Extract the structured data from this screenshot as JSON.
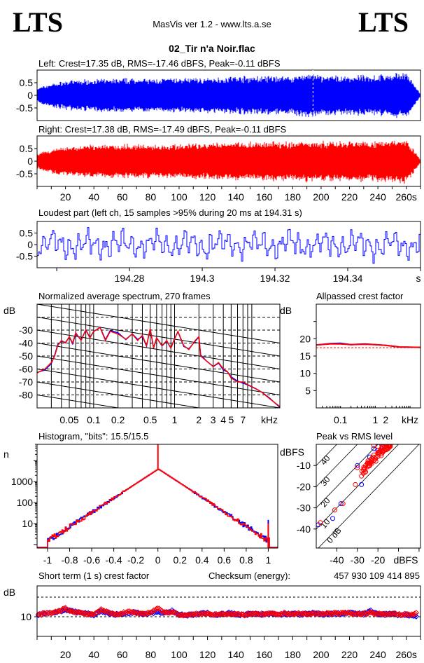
{
  "header": {
    "logo_left": "LTS",
    "logo_right": "LTS",
    "app": "MasVis ver 1.2 - www.lts.a.se",
    "file": "02_Tir n'a Noir.flac"
  },
  "colors": {
    "left": "#0000ff",
    "right": "#ff0000"
  },
  "chart_data": [
    {
      "id": "left",
      "type": "line",
      "title": "Left: Crest=17.35 dB, RMS=-17.46 dBFS, Peak=-0.11 dBFS",
      "ylim": [
        -1,
        1
      ],
      "yticks": [
        "0.5",
        "0",
        "-0.5"
      ],
      "xlim": [
        0,
        270
      ],
      "envelope_step_s": 10,
      "envelope": [
        0.3,
        0.5,
        0.6,
        0.65,
        0.68,
        0.7,
        0.7,
        0.72,
        0.68,
        0.72,
        0.72,
        0.75,
        0.72,
        0.78,
        0.8,
        0.8,
        0.8,
        0.82,
        0.8,
        0.95,
        0.82,
        0.82,
        0.82,
        0.85,
        0.85,
        0.9,
        0.97,
        0.05
      ]
    },
    {
      "id": "right",
      "type": "line",
      "title": "Right: Crest=17.38 dB, RMS=-17.49 dBFS, Peak=-0.11 dBFS",
      "ylim": [
        -1,
        1
      ],
      "yticks": [
        "0.5",
        "0",
        "-0.5"
      ],
      "xlim": [
        0,
        270
      ],
      "xticks": [
        "20",
        "40",
        "60",
        "80",
        "100",
        "120",
        "140",
        "160",
        "180",
        "200",
        "220",
        "240",
        "260s"
      ],
      "envelope_step_s": 10,
      "envelope": [
        0.3,
        0.5,
        0.6,
        0.65,
        0.68,
        0.7,
        0.7,
        0.72,
        0.68,
        0.72,
        0.72,
        0.75,
        0.72,
        0.78,
        0.85,
        0.8,
        0.8,
        0.82,
        0.8,
        0.88,
        0.82,
        0.85,
        0.85,
        0.85,
        0.85,
        0.9,
        0.97,
        0.05
      ]
    },
    {
      "id": "loudest",
      "type": "line",
      "title": "Loudest part (left  ch, 15 samples >95% during 20 ms at 194.31 s)",
      "xlim": [
        194.2546,
        194.36
      ],
      "ylim": [
        -1,
        1
      ],
      "yticks": [
        "0.5",
        "0",
        "-0.5"
      ],
      "xticks": [
        "194.28",
        "194.3",
        "194.32",
        "194.34"
      ],
      "xunit": "s"
    },
    {
      "id": "spectrum",
      "type": "line",
      "title": "Normalized average spectrum, 270 frames",
      "ylabel": "dB",
      "xlim_khz": [
        0.02,
        20
      ],
      "ylim": [
        -90,
        -10
      ],
      "yticks": [
        "-30",
        "-40",
        "-50",
        "-60",
        "-70",
        "-80"
      ],
      "xticks": [
        "0.05",
        "0.1",
        "0.2",
        "0.5",
        "1",
        "2",
        "3",
        "4",
        "5",
        "7"
      ],
      "xunit": "kHz",
      "points": [
        [
          0.02,
          -63
        ],
        [
          0.025,
          -60
        ],
        [
          0.03,
          -55
        ],
        [
          0.033,
          -50
        ],
        [
          0.036,
          -42
        ],
        [
          0.04,
          -38
        ],
        [
          0.045,
          -40
        ],
        [
          0.05,
          -35
        ],
        [
          0.055,
          -40
        ],
        [
          0.06,
          -32
        ],
        [
          0.07,
          -38
        ],
        [
          0.08,
          -30
        ],
        [
          0.09,
          -36
        ],
        [
          0.1,
          -31
        ],
        [
          0.12,
          -28
        ],
        [
          0.14,
          -38
        ],
        [
          0.16,
          -31
        ],
        [
          0.2,
          -33
        ],
        [
          0.25,
          -37
        ],
        [
          0.3,
          -33
        ],
        [
          0.35,
          -38
        ],
        [
          0.4,
          -34
        ],
        [
          0.45,
          -42
        ],
        [
          0.5,
          -29
        ],
        [
          0.55,
          -44
        ],
        [
          0.6,
          -36
        ],
        [
          0.7,
          -42
        ],
        [
          0.8,
          -38
        ],
        [
          0.9,
          -44
        ],
        [
          1.0,
          -37
        ],
        [
          1.1,
          -31
        ],
        [
          1.3,
          -42
        ],
        [
          1.5,
          -45
        ],
        [
          1.8,
          -38
        ],
        [
          2.0,
          -35
        ],
        [
          2.1,
          -50
        ],
        [
          2.5,
          -54
        ],
        [
          3.0,
          -58
        ],
        [
          3.5,
          -55
        ],
        [
          4.0,
          -60
        ],
        [
          4.5,
          -62
        ],
        [
          5.0,
          -67
        ],
        [
          6.0,
          -70
        ],
        [
          7.0,
          -70
        ],
        [
          8.0,
          -72
        ],
        [
          10,
          -75
        ],
        [
          12,
          -78
        ],
        [
          15,
          -83
        ],
        [
          20,
          -89
        ]
      ]
    },
    {
      "id": "allpass",
      "type": "line",
      "title": "Allpassed crest factor",
      "ylabel": "dB",
      "xlim_khz": [
        0.02,
        20
      ],
      "ylim": [
        0,
        30
      ],
      "yticks": [
        "20",
        "15",
        "10",
        "5"
      ],
      "xticks": [
        "0.1",
        "1",
        "2"
      ],
      "xunit": "kHz",
      "overall_crest_db": 17.4,
      "left": [
        [
          0.02,
          18.2
        ],
        [
          0.05,
          18.6
        ],
        [
          0.1,
          18.7
        ],
        [
          0.2,
          18.3
        ],
        [
          0.5,
          18.5
        ],
        [
          1,
          18.3
        ],
        [
          2,
          18.1
        ],
        [
          5,
          17.6
        ],
        [
          20,
          17.5
        ]
      ],
      "right": [
        [
          0.02,
          18.2
        ],
        [
          0.05,
          18.5
        ],
        [
          0.1,
          18.5
        ],
        [
          0.2,
          18.3
        ],
        [
          0.5,
          18.4
        ],
        [
          1,
          18.3
        ],
        [
          2,
          18.1
        ],
        [
          5,
          17.6
        ],
        [
          20,
          17.5
        ]
      ]
    },
    {
      "id": "histogram",
      "type": "line",
      "title": "Histogram, \"bits\": 15.5/15.5",
      "ylabel": "n",
      "xlim": [
        -1.095,
        1.086
      ],
      "ylog": [
        0.68,
        60000
      ],
      "yticks": [
        "1000",
        "100",
        "10"
      ],
      "xticks": [
        "-1",
        "-0.8",
        "-0.6",
        "-0.4",
        "-0.2",
        "0",
        "0.2",
        "0.4",
        "0.6",
        "0.8",
        "1"
      ],
      "center_count": 4000,
      "edge_count": 1.5,
      "clip_count_left": 15,
      "clip_count_right": 10
    },
    {
      "id": "peakrms",
      "type": "scatter",
      "title": "Peak vs RMS level",
      "ylabel": "dBFS",
      "xunit": "dBFS",
      "xlim": [
        -50,
        0.7
      ],
      "ylim": [
        -49,
        0
      ],
      "yticks": [
        "-10",
        "-20",
        "-30",
        "-40"
      ],
      "xticks": [
        "-40",
        "-30",
        "-20"
      ],
      "crest_lines": [
        "0 dB",
        "10",
        "20",
        "30",
        "40"
      ],
      "left": [
        [
          -49,
          -38
        ],
        [
          -42,
          -35
        ],
        [
          -38,
          -28
        ],
        [
          -30,
          -10
        ],
        [
          -28,
          -19
        ],
        [
          -24,
          -6
        ],
        [
          -22,
          -2
        ],
        [
          -20,
          -3
        ],
        [
          -18,
          -1
        ]
      ],
      "right": [
        [
          -48,
          -37
        ],
        [
          -41,
          -31
        ],
        [
          -37,
          -28
        ],
        [
          -30,
          -11
        ],
        [
          -31,
          -19
        ],
        [
          -28,
          -15
        ],
        [
          -27,
          -12
        ],
        [
          -26,
          -10
        ],
        [
          -25,
          -9
        ],
        [
          -24,
          -8
        ],
        [
          -23,
          -7
        ],
        [
          -22,
          -5
        ],
        [
          -21,
          -6
        ],
        [
          -20,
          -4
        ],
        [
          -19,
          -3
        ],
        [
          -18,
          -2
        ],
        [
          -17,
          -3
        ],
        [
          -16,
          -1
        ],
        [
          -15,
          -2
        ],
        [
          -14,
          -1
        ],
        [
          -22,
          -0.5
        ],
        [
          -20,
          -1
        ],
        [
          -26,
          -13
        ],
        [
          -24,
          -10
        ],
        [
          -23,
          -9
        ],
        [
          -21,
          -8
        ]
      ]
    },
    {
      "id": "shortcrest",
      "type": "scatter",
      "title": "Short term (1 s) crest factor",
      "ylabel": "dB",
      "checksum_label": "Checksum (energy):",
      "checksum": "457 930 109 414 895",
      "xlim": [
        0,
        270
      ],
      "ylim": [
        0,
        25.7
      ],
      "yticks": [
        "10"
      ],
      "dashed": [
        10,
        20
      ],
      "xticks": [
        "20",
        "40",
        "60",
        "80",
        "100",
        "120",
        "140",
        "160",
        "180",
        "200",
        "220",
        "240",
        "260s"
      ],
      "step_s": 5,
      "left": [
        11,
        11.8,
        12,
        12.5,
        13.5,
        13,
        12,
        11.5,
        11,
        13,
        12,
        11,
        11.5,
        12,
        12.3,
        11.5,
        12,
        12.5,
        12,
        13,
        11.2,
        10.8,
        11,
        11.5,
        11.8,
        11,
        11.3,
        11.8,
        11.2,
        11,
        11.4,
        11.2,
        11.1,
        11.5,
        11,
        11.3,
        11.5,
        11.2,
        11.4,
        11.8,
        11.3,
        11.2,
        11.6,
        11.5,
        12,
        11.5,
        11.3,
        12.8,
        11.5,
        11.2,
        11.4,
        11,
        11,
        10.5,
        9
      ],
      "right": [
        11,
        11.5,
        11.8,
        12.8,
        14.2,
        12.5,
        12.2,
        11.5,
        11.2,
        13.8,
        12,
        11.2,
        11.8,
        12.5,
        12,
        11.5,
        12.2,
        14.4,
        12,
        12.5,
        11,
        10.6,
        11.2,
        11.4,
        11.5,
        11.2,
        11.6,
        11.4,
        11.1,
        11,
        11.5,
        11.3,
        11.2,
        11.5,
        11.2,
        11.8,
        11.4,
        11.5,
        11.3,
        11.6,
        11.4,
        11.8,
        11.7,
        11.6,
        12,
        11.4,
        11.6,
        12.2,
        11.4,
        11.2,
        11.6,
        11.3,
        11.1,
        10.8,
        12.8
      ]
    }
  ]
}
